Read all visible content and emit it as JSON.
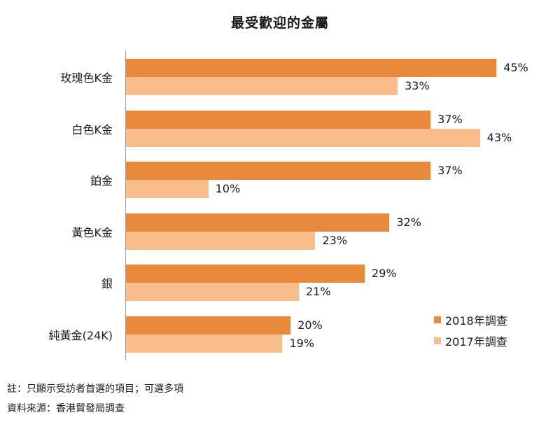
{
  "chart_data": {
    "type": "bar",
    "orientation": "horizontal",
    "title": "最受歡迎的金屬",
    "categories": [
      "玫瑰色K金",
      "白色K金",
      "鉑金",
      "黃色K金",
      "銀",
      "純黃金(24K)"
    ],
    "series": [
      {
        "name": "2018年調查",
        "color": "#e8893b",
        "values": [
          45,
          37,
          37,
          32,
          29,
          20
        ]
      },
      {
        "name": "2017年調查",
        "color": "#f9bd8b",
        "values": [
          33,
          43,
          10,
          23,
          21,
          19
        ]
      }
    ],
    "value_labels": {
      "2018": [
        "45%",
        "37%",
        "37%",
        "32%",
        "29%",
        "20%"
      ],
      "2017": [
        "33%",
        "43%",
        "10%",
        "23%",
        "21%",
        "19%"
      ]
    },
    "xlabel": "",
    "ylabel": "",
    "unit": "%",
    "xlim": [
      0,
      50
    ],
    "grid": false,
    "legend_position": "bottom-right"
  },
  "title": "最受歡迎的金屬",
  "legend": [
    {
      "label": "2018年調查",
      "color": "#e8893b"
    },
    {
      "label": "2017年調查",
      "color": "#f9bd8b"
    }
  ],
  "notes": {
    "note": "註：只顯示受訪者首選的項目；可選多項",
    "source": "資料來源：香港貿發局調查"
  }
}
